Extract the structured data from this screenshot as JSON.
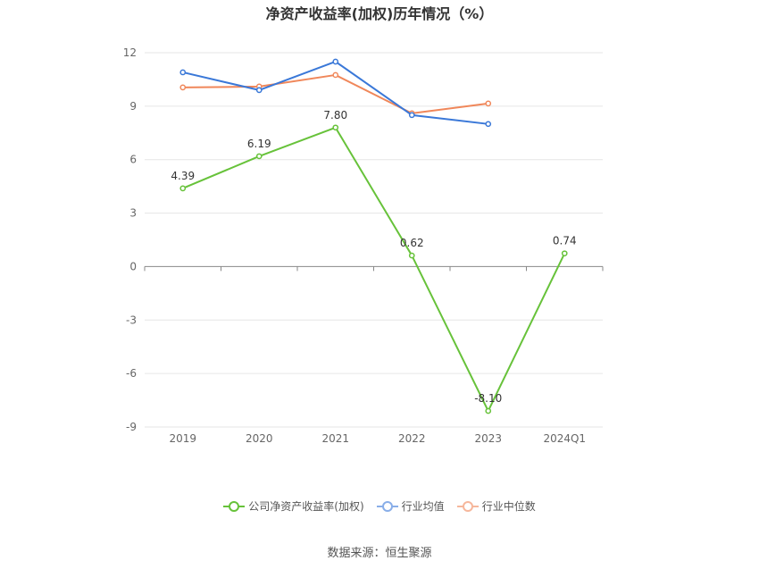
{
  "chart_data": {
    "type": "line",
    "title": "净资产收益率(加权)历年情况（%）",
    "categories": [
      "2019",
      "2020",
      "2021",
      "2022",
      "2023",
      "2024Q1"
    ],
    "y_ticks": [
      12,
      9,
      6,
      3,
      0,
      -3,
      -6,
      -9
    ],
    "ylim": [
      -9,
      12
    ],
    "grid": true,
    "legend_position": "bottom",
    "series": [
      {
        "name": "公司净资产收益率(加权)",
        "color": "#67c23a",
        "values": [
          4.39,
          6.19,
          7.8,
          0.62,
          -8.1,
          0.74
        ],
        "labels": [
          "4.39",
          "6.19",
          "7.80",
          "0.62",
          "-8.10",
          "0.74"
        ]
      },
      {
        "name": "行业均值",
        "color": "#3a78d8",
        "values": [
          10.9,
          9.9,
          11.5,
          8.5,
          8.0,
          null
        ]
      },
      {
        "name": "行业中位数",
        "color": "#f0875a",
        "values": [
          10.05,
          10.1,
          10.75,
          8.6,
          9.15,
          null
        ]
      }
    ]
  },
  "source": "数据来源：恒生聚源"
}
